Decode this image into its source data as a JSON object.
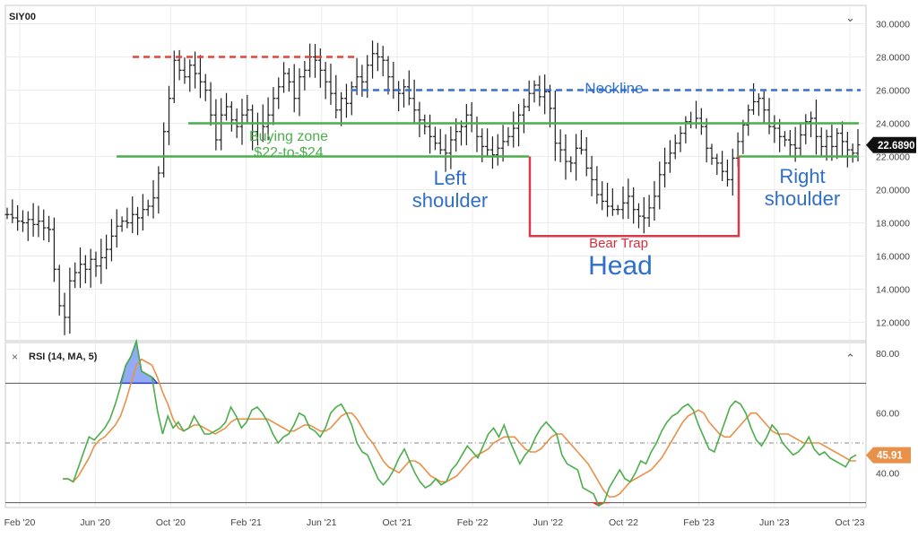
{
  "price_panel": {
    "symbol": "SIY00",
    "last_price_label": "22.6890",
    "collapse_glyph": "⌄"
  },
  "rsi_panel": {
    "title": "RSI (14, MA, 5)",
    "close_glyph": "×",
    "collapse_glyph": "⌃",
    "last_value_label": "45.91"
  },
  "colors": {
    "bars": "#1f1f1f",
    "green_line": "#4cae4c",
    "neckline": "#3b6fcf",
    "top_line": "#e0473a",
    "bear_trap": "#d9394a",
    "rsi_line": "#4cae4c",
    "rsi_ma": "#e8914a",
    "overbought_fill": "#6f8ff0",
    "oversold_fill": "#e0394a",
    "label_blue": "#2f6fc9",
    "label_green": "#4cae4c",
    "label_red": "#d0303e"
  },
  "annotations": {
    "neckline": "Neckline",
    "buying_zone_1": "Buying zone",
    "buying_zone_2": "$22-to-$24",
    "left_shoulder_1": "Left",
    "left_shoulder_2": "shoulder",
    "right_shoulder_1": "Right",
    "right_shoulder_2": "shoulder",
    "bear_trap": "Bear Trap",
    "head": "Head"
  },
  "chart_data": [
    {
      "type": "bar",
      "title": "SIY00",
      "x_tick_labels": [
        "Feb '20",
        "Jun '20",
        "Oct '20",
        "Feb '21",
        "Jun '21",
        "Oct '21",
        "Feb '22",
        "Jun '22",
        "Oct '22",
        "Feb '23",
        "Jun '23",
        "Oct '23"
      ],
      "y_tick_labels": [
        "12.0000",
        "14.0000",
        "16.0000",
        "18.0000",
        "20.0000",
        "22.0000",
        "24.0000",
        "26.0000",
        "28.0000",
        "30.0000"
      ],
      "ylim": [
        11,
        31
      ],
      "grid": true,
      "last_price": 22.689,
      "horizontal_lines": [
        {
          "name": "top",
          "value": 28.0,
          "style": "dashed",
          "color": "red"
        },
        {
          "name": "Neckline",
          "value": 26.0,
          "style": "dashed",
          "color": "blue"
        },
        {
          "name": "upper buying zone",
          "value": 24.0,
          "style": "solid",
          "color": "green"
        },
        {
          "name": "lower buying zone",
          "value": 22.0,
          "style": "solid",
          "color": "green"
        }
      ],
      "bear_trap_level": 17.2,
      "closes": [
        18.5,
        18.3,
        18.1,
        18.0,
        18.2,
        17.9,
        18.1,
        17.7,
        17.6,
        15.2,
        13.0,
        12.3,
        14.5,
        15.0,
        15.5,
        15.2,
        15.8,
        15.4,
        15.9,
        16.4,
        17.2,
        17.8,
        18.1,
        18.0,
        18.5,
        18.3,
        18.8,
        19.0,
        19.5,
        21.0,
        23.5,
        25.5,
        27.8,
        27.2,
        26.8,
        27.5,
        27.0,
        26.5,
        26.0,
        24.5,
        23.0,
        24.5,
        25.0,
        24.2,
        23.8,
        24.5,
        24.8,
        23.5,
        24.0,
        23.8,
        24.5,
        25.5,
        26.2,
        27.0,
        26.5,
        25.5,
        26.8,
        27.2,
        28.0,
        27.8,
        27.2,
        26.5,
        25.8,
        24.8,
        25.5,
        25.2,
        26.2,
        26.8,
        26.5,
        27.5,
        28.2,
        28.0,
        27.8,
        26.8,
        26.0,
        25.8,
        26.2,
        25.5,
        24.8,
        24.2,
        23.8,
        23.2,
        22.8,
        22.4,
        22.2,
        23.0,
        23.5,
        23.8,
        24.5,
        24.0,
        23.2,
        22.6,
        22.4,
        22.1,
        22.5,
        22.9,
        23.2,
        23.7,
        24.5,
        25.0,
        25.8,
        26.3,
        25.6,
        25.9,
        24.9,
        22.8,
        22.4,
        21.7,
        21.6,
        22.5,
        22.4,
        21.3,
        20.6,
        19.7,
        19.3,
        19.0,
        18.8,
        18.8,
        19.2,
        19.6,
        18.8,
        18.4,
        18.3,
        18.9,
        19.6,
        20.9,
        21.6,
        22.2,
        22.8,
        23.4,
        24.1,
        24.0,
        24.3,
        23.8,
        22.5,
        21.9,
        21.6,
        21.1,
        20.6,
        21.9,
        22.9,
        23.9,
        24.8,
        25.3,
        25.5,
        24.8,
        23.8,
        23.7,
        23.2,
        23.0,
        22.7,
        22.5,
        23.3,
        24.1,
        24.3,
        23.2,
        22.6,
        23.2,
        22.6,
        23.4,
        22.9,
        22.4,
        22.2,
        22.7
      ]
    },
    {
      "type": "line",
      "title": "RSI (14, MA, 5)",
      "x_tick_labels": [
        "Feb '20",
        "Jun '20",
        "Oct '20",
        "Feb '21",
        "Jun '21",
        "Oct '21",
        "Feb '22",
        "Jun '22",
        "Oct '22",
        "Feb '23",
        "Jun '23",
        "Oct '23"
      ],
      "y_tick_labels": [
        "40.00",
        "60.00",
        "80.00"
      ],
      "ylim": [
        29,
        83
      ],
      "reference_lines": [
        70,
        50,
        30
      ],
      "last_value": 45.91,
      "series": [
        {
          "name": "RSI",
          "values": [
            38,
            38,
            37,
            42,
            47,
            52,
            51,
            53,
            55,
            58,
            63,
            69,
            76,
            79,
            84,
            74,
            73,
            72,
            61,
            53,
            59,
            55,
            57,
            54,
            55,
            59,
            56,
            53,
            53,
            54,
            55,
            57,
            62,
            59,
            55,
            57,
            61,
            62,
            60,
            57,
            53,
            50,
            52,
            53,
            56,
            60,
            59,
            55,
            54,
            52,
            55,
            60,
            62,
            63,
            60,
            56,
            50,
            47,
            46,
            42,
            38,
            36,
            38,
            41,
            45,
            48,
            44,
            40,
            37,
            35,
            36,
            38,
            36,
            37,
            41,
            43,
            46,
            49,
            47,
            45,
            49,
            53,
            55,
            52,
            56,
            51,
            47,
            43,
            46,
            48,
            52,
            55,
            57,
            55,
            53,
            46,
            43,
            42,
            41,
            35,
            34,
            33,
            29,
            30,
            35,
            38,
            41,
            38,
            37,
            40,
            44,
            43,
            47,
            50,
            54,
            57,
            59,
            60,
            62,
            63,
            61,
            56,
            52,
            48,
            47,
            52,
            57,
            62,
            64,
            63,
            60,
            55,
            51,
            49,
            52,
            56,
            54,
            50,
            48,
            46,
            47,
            49,
            52,
            48,
            46,
            47,
            45,
            44,
            43,
            42,
            45,
            46
          ]
        },
        {
          "name": "MA",
          "values": [
            38,
            38,
            37,
            39,
            42,
            45,
            49,
            51,
            52,
            54,
            56,
            59,
            64,
            70,
            76,
            78,
            77,
            76,
            72,
            67,
            63,
            58,
            55,
            54,
            55,
            56,
            56,
            55,
            54,
            53,
            54,
            55,
            57,
            58,
            58,
            58,
            58,
            58,
            58,
            58,
            57,
            56,
            55,
            54,
            54,
            55,
            56,
            56,
            55,
            54,
            54,
            55,
            57,
            59,
            60,
            60,
            58,
            55,
            52,
            50,
            47,
            44,
            42,
            41,
            40,
            42,
            44,
            44,
            43,
            41,
            39,
            38,
            37,
            37,
            38,
            39,
            41,
            43,
            45,
            46,
            47,
            48,
            50,
            51,
            52,
            52,
            52,
            50,
            48,
            47,
            47,
            48,
            50,
            52,
            53,
            53,
            51,
            49,
            47,
            45,
            43,
            40,
            37,
            34,
            32,
            32,
            33,
            35,
            37,
            38,
            39,
            40,
            41,
            43,
            45,
            48,
            51,
            54,
            57,
            59,
            60,
            61,
            60,
            57,
            55,
            53,
            52,
            52,
            54,
            56,
            58,
            60,
            60,
            58,
            56,
            54,
            53,
            53,
            53,
            52,
            51,
            50,
            50,
            50,
            50,
            49,
            48,
            47,
            46,
            45,
            44,
            44
          ]
        }
      ]
    }
  ]
}
